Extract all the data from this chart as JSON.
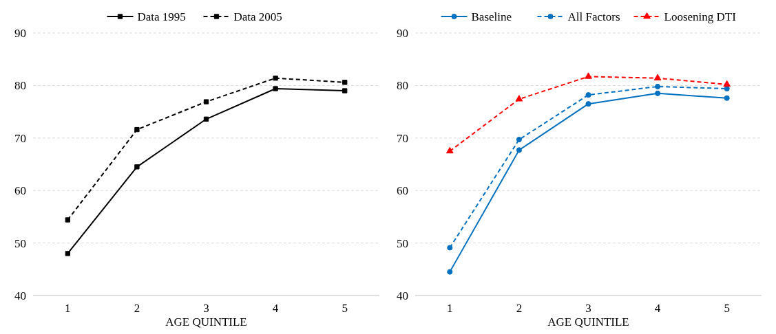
{
  "chart_data": [
    {
      "type": "line",
      "xlabel": "AGE QUINTILE",
      "categories": [
        "1",
        "2",
        "3",
        "4",
        "5"
      ],
      "ylim": [
        40,
        90
      ],
      "yticks": [
        40,
        50,
        60,
        70,
        80,
        90
      ],
      "grid": "y",
      "legend": "top",
      "marker": "square",
      "series": [
        {
          "name": "Data 1995",
          "color": "#000000",
          "line_style": "solid",
          "values": [
            48.0,
            64.5,
            73.6,
            79.4,
            79.0
          ]
        },
        {
          "name": "Data 2005",
          "color": "#000000",
          "line_style": "dashed",
          "values": [
            54.4,
            71.6,
            76.9,
            81.4,
            80.6
          ]
        }
      ]
    },
    {
      "type": "line",
      "xlabel": "AGE QUINTILE",
      "categories": [
        "1",
        "2",
        "3",
        "4",
        "5"
      ],
      "ylim": [
        40,
        90
      ],
      "yticks": [
        40,
        50,
        60,
        70,
        80,
        90
      ],
      "grid": "y",
      "legend": "top",
      "series": [
        {
          "name": "Baseline",
          "color": "#0070c0",
          "line_style": "solid",
          "marker": "circle",
          "values": [
            44.5,
            67.7,
            76.5,
            78.5,
            77.6
          ]
        },
        {
          "name": "All Factors",
          "color": "#0070c0",
          "line_style": "dashed",
          "marker": "circle",
          "values": [
            49.1,
            69.7,
            78.2,
            79.8,
            79.4
          ]
        },
        {
          "name": "Loosening DTI",
          "color": "#ff0000",
          "line_style": "dashed",
          "marker": "triangle",
          "values": [
            67.5,
            77.4,
            81.7,
            81.4,
            80.2
          ]
        }
      ]
    }
  ]
}
